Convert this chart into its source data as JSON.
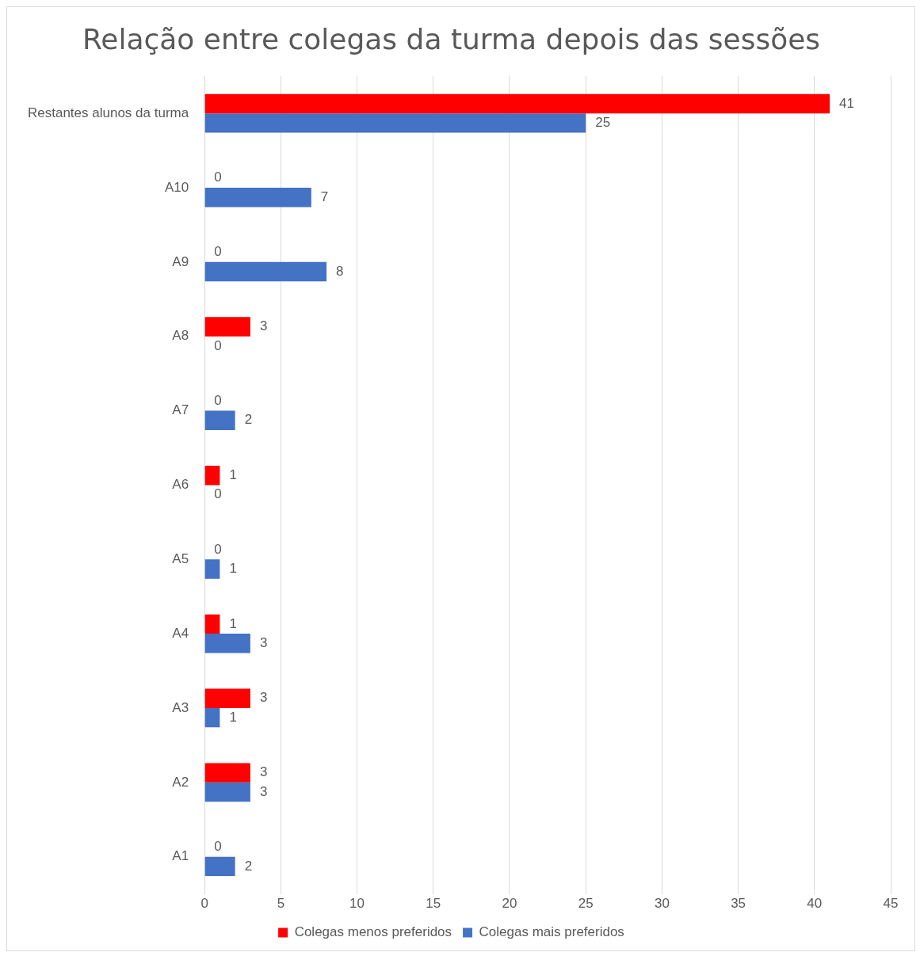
{
  "chart_data": {
    "type": "bar",
    "orientation": "horizontal",
    "title": "Relação entre colegas da turma depois das sessões",
    "categories": [
      "Restantes alunos da turma",
      "A10",
      "A9",
      "A8",
      "A7",
      "A6",
      "A5",
      "A4",
      "A3",
      "A2",
      "A1"
    ],
    "series": [
      {
        "name": "Colegas menos preferidos",
        "color": "#ff0000",
        "values": [
          41,
          0,
          0,
          3,
          0,
          1,
          0,
          1,
          3,
          3,
          0
        ]
      },
      {
        "name": "Colegas mais preferidos",
        "color": "#4472c4",
        "values": [
          25,
          7,
          8,
          0,
          2,
          0,
          1,
          3,
          1,
          3,
          2
        ]
      }
    ],
    "xlim": [
      0,
      45
    ],
    "xticks": [
      0,
      5,
      10,
      15,
      20,
      25,
      30,
      35,
      40,
      45
    ],
    "grid": "x",
    "legend": "bottom",
    "data_labels": true
  }
}
